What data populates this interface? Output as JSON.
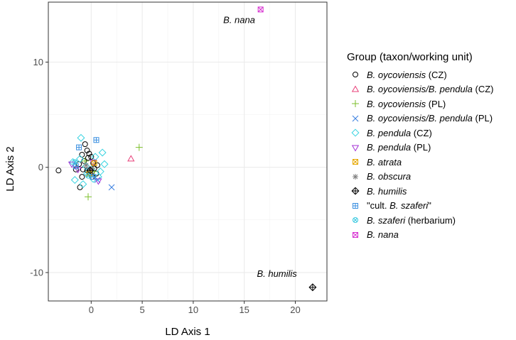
{
  "chart_data": {
    "type": "scatter",
    "xlabel": "LD Axis 1",
    "ylabel": "LD Axis 2",
    "xlim": [
      -4.2,
      23.1
    ],
    "ylim": [
      -12.7,
      15.7
    ],
    "x_ticks": [
      0,
      5,
      10,
      15,
      20
    ],
    "y_ticks": [
      -10,
      0,
      10
    ],
    "grid": true,
    "legend_title": "Group (taxon/working unit)",
    "legend_position": "right",
    "annotations": [
      {
        "text": "B. nana",
        "x": 14.5,
        "y": 13.7
      },
      {
        "text": "B. humilis",
        "x": 18.2,
        "y": -10.4
      }
    ],
    "series": [
      {
        "name": "B. oycoviensis (CZ)",
        "italic": "B. oycoviensis",
        "suffix": " (CZ)",
        "marker": "circle",
        "color": "#000000",
        "points": [
          [
            -3.2,
            -0.3
          ],
          [
            -0.8,
            -0.2
          ],
          [
            -0.4,
            1.6
          ],
          [
            -0.6,
            2.2
          ],
          [
            -1.2,
            0.3
          ],
          [
            -0.3,
            0.9
          ],
          [
            0.2,
            0.4
          ],
          [
            -0.9,
            -0.9
          ],
          [
            -0.1,
            -0.6
          ],
          [
            0.6,
            0.2
          ],
          [
            -1.5,
            -0.2
          ],
          [
            0.0,
            1.0
          ],
          [
            -0.7,
            0.6
          ],
          [
            0.3,
            -0.1
          ],
          [
            -1.1,
            -1.9
          ],
          [
            -0.4,
            -0.3
          ],
          [
            0.1,
            -0.9
          ],
          [
            -0.2,
            1.3
          ],
          [
            0.5,
            -0.6
          ],
          [
            -0.9,
            1.2
          ]
        ]
      },
      {
        "name": "B. oycoviensis/B. pendula (CZ)",
        "italic": "B. oycoviensis/B. pendula",
        "suffix": " (CZ)",
        "marker": "triangle-up",
        "color": "#E8417A",
        "points": [
          [
            3.9,
            0.8
          ],
          [
            -0.2,
            -0.2
          ]
        ]
      },
      {
        "name": "B. oycoviensis (PL)",
        "italic": "B. oycoviensis",
        "suffix": " (PL)",
        "marker": "plus",
        "color": "#7CBF2B",
        "points": [
          [
            4.7,
            1.9
          ],
          [
            -0.3,
            -2.8
          ],
          [
            -0.6,
            0.6
          ],
          [
            0.3,
            -0.4
          ]
        ]
      },
      {
        "name": "B. oycoviensis/B. pendula (PL)",
        "italic": "B. oycoviensis/B. pendula",
        "suffix": " (PL)",
        "marker": "cross",
        "color": "#3A7FE0",
        "points": [
          [
            2.0,
            -1.9
          ],
          [
            0.6,
            -1.2
          ]
        ]
      },
      {
        "name": "B. pendula (CZ)",
        "italic": "B. pendula",
        "suffix": " (CZ)",
        "marker": "diamond",
        "color": "#37D3E0",
        "points": [
          [
            -1.0,
            2.8
          ],
          [
            1.1,
            1.4
          ],
          [
            -1.6,
            -1.2
          ],
          [
            -0.4,
            -0.6
          ],
          [
            1.3,
            0.3
          ],
          [
            0.2,
            -1.1
          ],
          [
            -1.1,
            0.8
          ],
          [
            0.7,
            -0.9
          ],
          [
            -0.5,
            0.1
          ],
          [
            0.4,
            1.0
          ],
          [
            -1.8,
            0.5
          ],
          [
            0.0,
            -0.2
          ],
          [
            -0.8,
            -1.6
          ],
          [
            0.9,
            -0.4
          ]
        ]
      },
      {
        "name": "B. pendula (PL)",
        "italic": "B. pendula",
        "suffix": " (PL)",
        "marker": "triangle-down",
        "color": "#A533D6",
        "points": [
          [
            -1.9,
            0.3
          ],
          [
            0.7,
            -1.3
          ],
          [
            -1.3,
            -0.2
          ],
          [
            0.2,
            0.5
          ]
        ]
      },
      {
        "name": "B. atrata",
        "italic": "B. atrata",
        "suffix": "",
        "marker": "square-x",
        "color": "#E6A700",
        "points": [
          [
            0.3,
            0.4
          ],
          [
            -0.2,
            -0.6
          ]
        ]
      },
      {
        "name": "B. obscura",
        "italic": "B. obscura",
        "suffix": "",
        "marker": "asterisk",
        "color": "#7F7F7F",
        "points": [
          [
            0.1,
            -0.1
          ],
          [
            -0.5,
            0.2
          ]
        ]
      },
      {
        "name": "B. humilis",
        "italic": "B. humilis",
        "suffix": "",
        "marker": "diamond-plus",
        "color": "#000000",
        "points": [
          [
            21.7,
            -11.4
          ],
          [
            -0.1,
            -0.3
          ]
        ]
      },
      {
        "name": "\"cult. B. szaferi\"",
        "prefix": "\"cult. ",
        "italic": "B. szaferi",
        "suffix": "\"",
        "marker": "square-plus",
        "color": "#3A8FE0",
        "points": [
          [
            0.5,
            2.6
          ],
          [
            -1.2,
            1.9
          ],
          [
            -1.5,
            0.1
          ],
          [
            0.2,
            -0.9
          ]
        ]
      },
      {
        "name": "B. szaferi (herbarium)",
        "italic": "B. szaferi",
        "suffix": " (herbarium)",
        "marker": "circle-x",
        "color": "#37C8E0",
        "points": [
          [
            -1.6,
            0.5
          ],
          [
            -0.3,
            -0.8
          ]
        ]
      },
      {
        "name": "B. nana",
        "italic": "B. nana",
        "suffix": "",
        "marker": "bowtie",
        "color": "#D62FD0",
        "points": [
          [
            16.6,
            15.0
          ]
        ]
      }
    ]
  }
}
